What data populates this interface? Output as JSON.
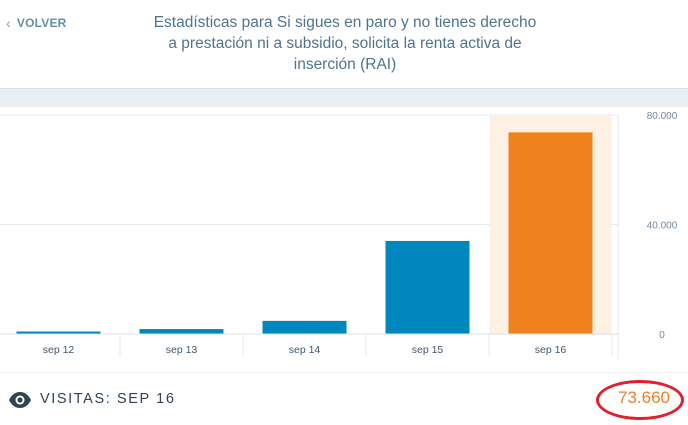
{
  "header": {
    "back_label": "VOLVER",
    "title": "Estadísticas para Si sigues en paro y no tienes derecho a prestación ni a subsidio, solicita la renta activa de inserción (RAI)"
  },
  "chart_data": {
    "type": "bar",
    "categories": [
      "sep 12",
      "sep 13",
      "sep 14",
      "sep 15",
      "sep 16"
    ],
    "values": [
      900,
      1800,
      4800,
      34000,
      73660
    ],
    "highlighted": "sep 16",
    "y_ticks": [
      "80.000",
      "40.000",
      "0"
    ],
    "ylim": [
      0,
      80000
    ],
    "colors": {
      "bar": "#0087be",
      "highlight": "#f0821e",
      "highlight_bg": "#fdf1e3"
    }
  },
  "footer": {
    "label": "VISITAS: SEP 16",
    "count": "73.660",
    "icon": "eye-icon"
  }
}
